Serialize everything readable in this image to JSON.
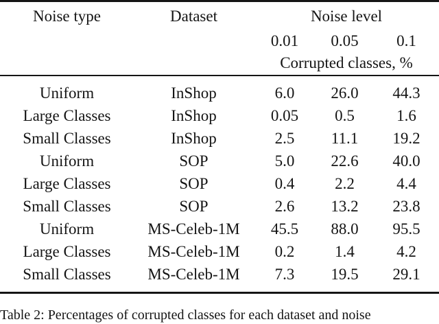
{
  "table": {
    "header": {
      "noise_type": "Noise type",
      "dataset": "Dataset",
      "group": "Noise level",
      "levels": [
        "0.01",
        "0.05",
        "0.1"
      ],
      "subheader": "Corrupted classes, %"
    },
    "rows": [
      {
        "noise_type": "Uniform",
        "dataset": "InShop",
        "v1": "6.0",
        "v2": "26.0",
        "v3": "44.3"
      },
      {
        "noise_type": "Large Classes",
        "dataset": "InShop",
        "v1": "0.05",
        "v2": "0.5",
        "v3": "1.6"
      },
      {
        "noise_type": "Small Classes",
        "dataset": "InShop",
        "v1": "2.5",
        "v2": "11.1",
        "v3": "19.2"
      },
      {
        "noise_type": "Uniform",
        "dataset": "SOP",
        "v1": "5.0",
        "v2": "22.6",
        "v3": "40.0"
      },
      {
        "noise_type": "Large Classes",
        "dataset": "SOP",
        "v1": "0.4",
        "v2": "2.2",
        "v3": "4.4"
      },
      {
        "noise_type": "Small Classes",
        "dataset": "SOP",
        "v1": "2.6",
        "v2": "13.2",
        "v3": "23.8"
      },
      {
        "noise_type": "Uniform",
        "dataset": "MS-Celeb-1M",
        "v1": "45.5",
        "v2": "88.0",
        "v3": "95.5"
      },
      {
        "noise_type": "Large Classes",
        "dataset": "MS-Celeb-1M",
        "v1": "0.2",
        "v2": "1.4",
        "v3": "4.2"
      },
      {
        "noise_type": "Small Classes",
        "dataset": "MS-Celeb-1M",
        "v1": "7.3",
        "v2": "19.5",
        "v3": "29.1"
      }
    ]
  },
  "caption": "Table 2: Percentages of corrupted classes for each dataset and noise",
  "colors": {
    "text": "#141414",
    "rule": "#151515",
    "background": "#ffffff"
  }
}
